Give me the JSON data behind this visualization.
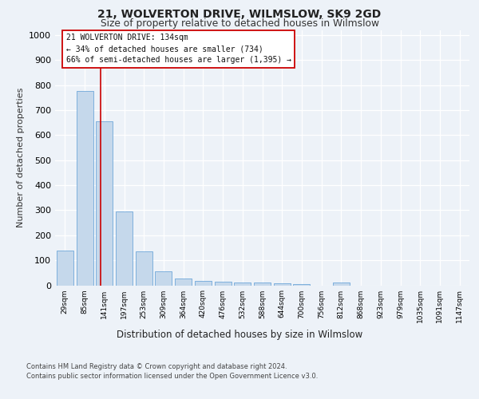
{
  "title1": "21, WOLVERTON DRIVE, WILMSLOW, SK9 2GD",
  "title2": "Size of property relative to detached houses in Wilmslow",
  "xlabel": "Distribution of detached houses by size in Wilmslow",
  "ylabel": "Number of detached properties",
  "bar_labels": [
    "29sqm",
    "85sqm",
    "141sqm",
    "197sqm",
    "253sqm",
    "309sqm",
    "364sqm",
    "420sqm",
    "476sqm",
    "532sqm",
    "588sqm",
    "644sqm",
    "700sqm",
    "756sqm",
    "812sqm",
    "868sqm",
    "923sqm",
    "979sqm",
    "1035sqm",
    "1091sqm",
    "1147sqm"
  ],
  "bar_vals": [
    140,
    775,
    655,
    295,
    135,
    55,
    28,
    18,
    15,
    10,
    10,
    8,
    5,
    0,
    10,
    0,
    0,
    0,
    0,
    0,
    0
  ],
  "bar_color": "#c5d8eb",
  "bar_edgecolor": "#5b9bd5",
  "property_line_x": 1.82,
  "property_line_color": "#cc0000",
  "annotation_text": "21 WOLVERTON DRIVE: 134sqm\n← 34% of detached houses are smaller (734)\n66% of semi-detached houses are larger (1,395) →",
  "ylim_max": 1020,
  "yticks": [
    0,
    100,
    200,
    300,
    400,
    500,
    600,
    700,
    800,
    900,
    1000
  ],
  "footer_line1": "Contains HM Land Registry data © Crown copyright and database right 2024.",
  "footer_line2": "Contains public sector information licensed under the Open Government Licence v3.0.",
  "fig_bg_color": "#edf2f8",
  "axes_bg_color": "#edf2f8"
}
